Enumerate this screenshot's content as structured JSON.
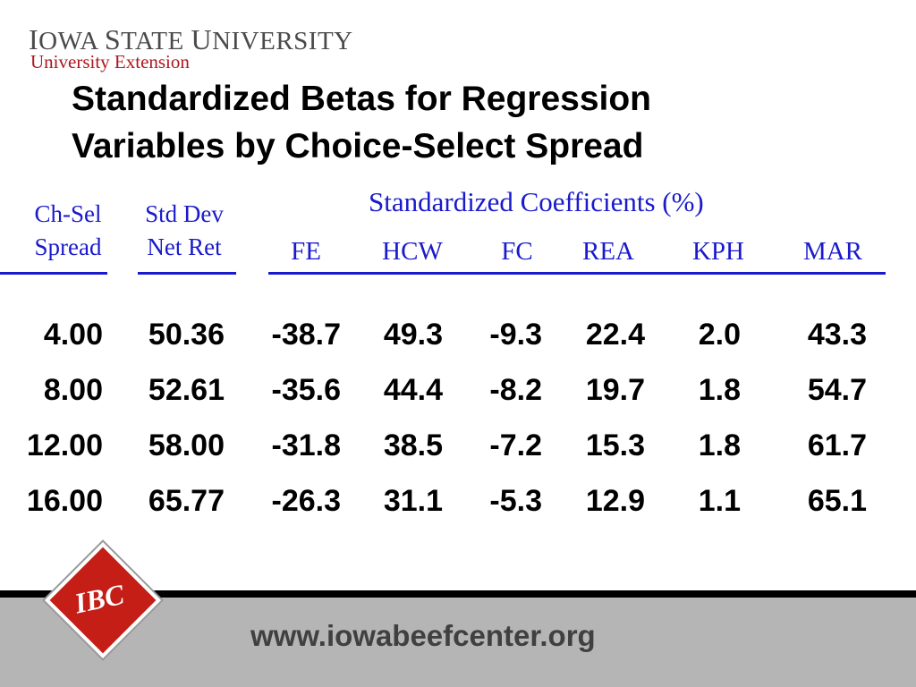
{
  "header": {
    "logo_line1_a": "I",
    "logo_line1_b": "OWA ",
    "logo_line1_c": "S",
    "logo_line1_d": "TATE ",
    "logo_line1_e": "U",
    "logo_line1_f": "NIVERSITY",
    "logo_line2": "University Extension"
  },
  "title": {
    "line1": "Standardized Betas for Regression",
    "line2": "Variables by Choice-Select Spread"
  },
  "table": {
    "group_header": "Standardized Coefficients (%)",
    "col1_line1": "Ch-Sel",
    "col1_line2": "Spread",
    "col2_line1": "Std Dev",
    "col2_line2": "Net Ret",
    "columns": [
      "FE",
      "HCW",
      "FC",
      "REA",
      "KPH",
      "MAR"
    ],
    "rows": [
      [
        "4.00",
        "50.36",
        "-38.7",
        "49.3",
        "-9.3",
        "22.4",
        "2.0",
        "43.3"
      ],
      [
        "8.00",
        "52.61",
        "-35.6",
        "44.4",
        "-8.2",
        "19.7",
        "1.8",
        "54.7"
      ],
      [
        "12.00",
        "58.00",
        "-31.8",
        "38.5",
        "-7.2",
        "15.3",
        "1.8",
        "61.7"
      ],
      [
        "16.00",
        "65.77",
        "-26.3",
        "31.1",
        "-5.3",
        "12.9",
        "1.1",
        "65.1"
      ]
    ]
  },
  "footer": {
    "logo_text": "IBC",
    "url": "www.iowabeefcenter.org"
  },
  "colors": {
    "header_blue": "#1a1acc",
    "brand_red": "#b0161d",
    "footer_gray": "#b5b5b5"
  }
}
